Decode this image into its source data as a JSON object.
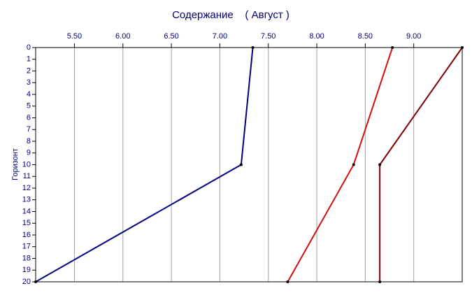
{
  "chart_data": {
    "type": "line",
    "title": "Содержание    ( Август )",
    "ylabel": "Горизонт",
    "y": [
      0,
      10,
      20
    ],
    "series": [
      {
        "color": "#000080",
        "values": [
          7.34,
          7.22,
          5.1
        ]
      },
      {
        "color": "#d01010",
        "values": [
          8.78,
          8.38,
          7.7
        ]
      },
      {
        "color": "#800000",
        "values": [
          9.5,
          8.65,
          8.65
        ]
      }
    ],
    "xlim": [
      5.1,
      9.5
    ],
    "xticks": [
      {
        "value": 5.5,
        "label": "5.50"
      },
      {
        "value": 6,
        "label": "6.00"
      },
      {
        "value": 6.5,
        "label": "6.50"
      },
      {
        "value": 7,
        "label": "7.00"
      },
      {
        "value": 7.5,
        "label": "7.50"
      },
      {
        "value": 8,
        "label": "8.00"
      },
      {
        "value": 8.5,
        "label": "8.50"
      },
      {
        "value": 9,
        "label": "9.00"
      }
    ],
    "ylim": [
      0,
      20
    ],
    "y_inverted": true,
    "yticks": [
      0,
      1,
      2,
      3,
      4,
      5,
      6,
      7,
      8,
      9,
      10,
      11,
      12,
      13,
      14,
      15,
      16,
      17,
      18,
      19,
      20
    ],
    "grid": true
  }
}
